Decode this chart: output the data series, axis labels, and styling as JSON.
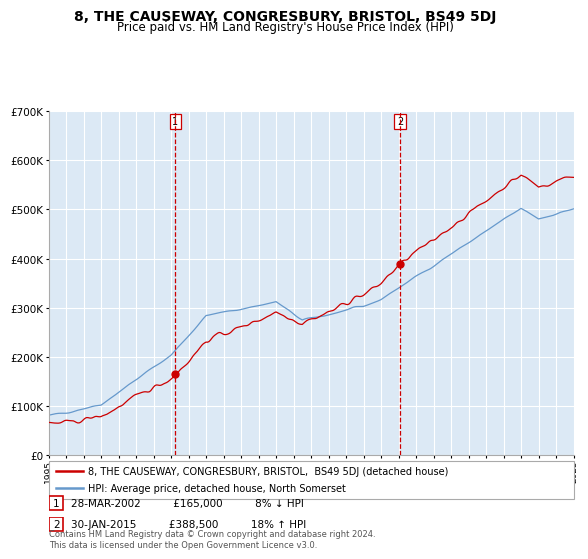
{
  "title": "8, THE CAUSEWAY, CONGRESBURY, BRISTOL, BS49 5DJ",
  "subtitle": "Price paid vs. HM Land Registry's House Price Index (HPI)",
  "title_fontsize": 10,
  "subtitle_fontsize": 8.5,
  "background_color": "#ffffff",
  "plot_bg_color": "#dce9f5",
  "ylim": [
    0,
    700000
  ],
  "yticks": [
    0,
    100000,
    200000,
    300000,
    400000,
    500000,
    600000,
    700000
  ],
  "xstart_year": 1995,
  "xend_year": 2025,
  "red_line_color": "#cc0000",
  "blue_line_color": "#6699cc",
  "vline_color": "#cc0000",
  "marker_color": "#cc0000",
  "sale1_year": 2002.23,
  "sale1_price": 165000,
  "sale1_label": "1",
  "sale2_year": 2015.08,
  "sale2_price": 388500,
  "sale2_label": "2",
  "legend_line1": "8, THE CAUSEWAY, CONGRESBURY, BRISTOL,  BS49 5DJ (detached house)",
  "legend_line2": "HPI: Average price, detached house, North Somerset",
  "info1_label": "1",
  "info1_date": "28-MAR-2002",
  "info1_price": "£165,000",
  "info1_hpi": "8% ↓ HPI",
  "info2_label": "2",
  "info2_date": "30-JAN-2015",
  "info2_price": "£388,500",
  "info2_hpi": "18% ↑ HPI",
  "footer": "Contains HM Land Registry data © Crown copyright and database right 2024.\nThis data is licensed under the Open Government Licence v3.0.",
  "grid_color": "#ffffff",
  "grid_linewidth": 0.8
}
